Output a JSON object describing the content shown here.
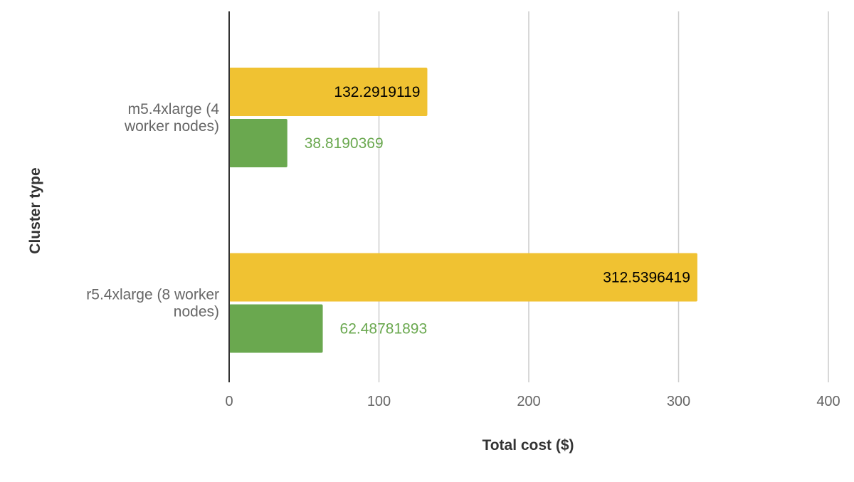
{
  "chart_data": {
    "type": "bar",
    "orientation": "horizontal",
    "categories": [
      "m5.4xlarge (4 worker nodes)",
      "r5.4xlarge (8 worker nodes)"
    ],
    "category_lines": [
      [
        "m5.4xlarge (4",
        "worker nodes)"
      ],
      [
        "r5.4xlarge (8 worker",
        "nodes)"
      ]
    ],
    "series": [
      {
        "values": [
          132.2919119,
          312.5396419
        ],
        "labels": [
          "132.2919119",
          "312.5396419"
        ],
        "color": "#f0c232",
        "label_color": "#000000",
        "label_position": "inside-end"
      },
      {
        "values": [
          38.8190369,
          62.48781893
        ],
        "labels": [
          "38.8190369",
          "62.48781893"
        ],
        "color": "#6aa84f",
        "label_color": "#6aa84f",
        "label_position": "outside-end"
      }
    ],
    "xlabel": "Total cost ($)",
    "ylabel": "Cluster type",
    "xlim": [
      0,
      400
    ],
    "xticks": [
      0,
      100,
      200,
      300,
      400
    ],
    "xtick_labels": [
      "0",
      "100",
      "200",
      "300",
      "400"
    ],
    "grid": true,
    "legend": "none"
  }
}
